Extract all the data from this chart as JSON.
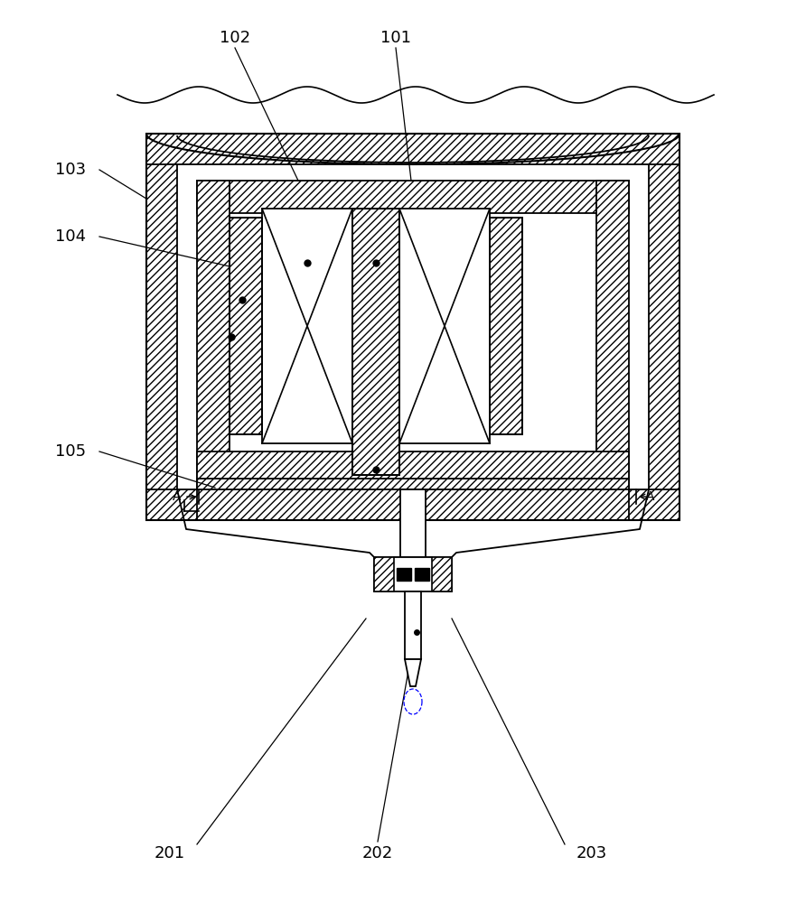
{
  "bg_color": "#ffffff",
  "fig_width": 8.92,
  "fig_height": 10.0,
  "dpi": 100,
  "label_fs": 13
}
